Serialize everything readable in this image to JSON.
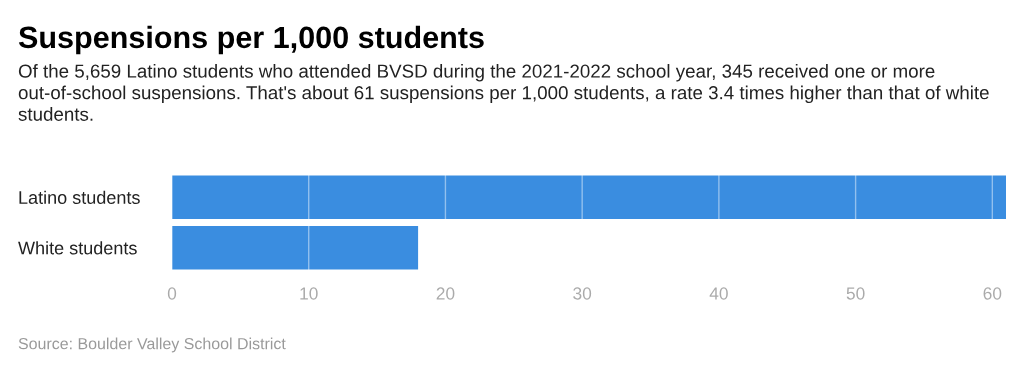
{
  "chart_data": {
    "type": "bar",
    "orientation": "horizontal",
    "title": "Suspensions per 1,000 students",
    "subtitle": "Of the 5,659 Latino students who attended BVSD during the 2021-2022 school year, 345 received one or more out-of-school suspensions. That's about 61 suspensions per 1,000 students, a rate 3.4 times higher than that of white students.",
    "categories": [
      "Latino students",
      "White students"
    ],
    "values": [
      61,
      18
    ],
    "color": "#3a8de0",
    "xlim": [
      0,
      61
    ],
    "xticks": [
      0,
      10,
      20,
      30,
      40,
      50,
      60
    ],
    "grid": "x",
    "annotations": [
      "Source: Boulder Valley School District"
    ]
  }
}
